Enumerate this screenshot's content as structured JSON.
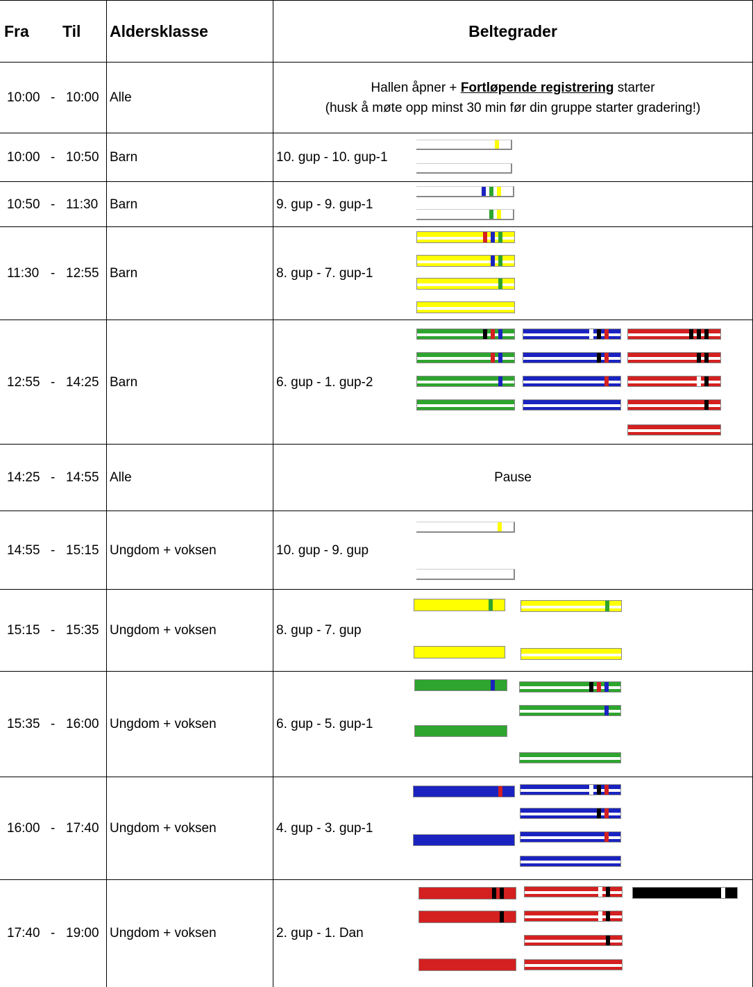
{
  "header": {
    "from": "Fra",
    "to": "Til",
    "age_class": "Aldersklasse",
    "belts": "Beltegrader"
  },
  "rows": [
    {
      "from": "10:00",
      "sep": "-",
      "to": "10:00",
      "age": "Alle",
      "grades": "",
      "note_pre": "Hallen åpner + ",
      "note_link": "Fortløpende registrering",
      "note_post": " starter",
      "note_line2": "(husk å møte opp minst 30 min før din gruppe starter gradering!)"
    },
    {
      "from": "10:00",
      "sep": "-",
      "to": "10:50",
      "age": "Barn",
      "grades": "10. gup - 10. gup-1"
    },
    {
      "from": "10:50",
      "sep": "-",
      "to": "11:30",
      "age": "Barn",
      "grades": "9. gup - 9. gup-1"
    },
    {
      "from": "11:30",
      "sep": "-",
      "to": "12:55",
      "age": "Barn",
      "grades": "8. gup - 7. gup-1"
    },
    {
      "from": "12:55",
      "sep": "-",
      "to": "14:25",
      "age": "Barn",
      "grades": "6. gup - 1. gup-2"
    },
    {
      "from": "14:25",
      "sep": "-",
      "to": "14:55",
      "age": "Alle",
      "grades": "",
      "note": "Pause"
    },
    {
      "from": "14:55",
      "sep": "-",
      "to": "15:15",
      "age": "Ungdom + voksen",
      "grades": "10. gup - 9. gup"
    },
    {
      "from": "15:15",
      "sep": "-",
      "to": "15:35",
      "age": "Ungdom + voksen",
      "grades": "8. gup - 7. gup"
    },
    {
      "from": "15:35",
      "sep": "-",
      "to": "16:00",
      "age": "Ungdom + voksen",
      "grades": "6. gup - 5. gup-1"
    },
    {
      "from": "16:00",
      "sep": "-",
      "to": "17:40",
      "age": "Ungdom + voksen",
      "grades": "4. gup - 3. gup-1"
    },
    {
      "from": "17:40",
      "sep": "-",
      "to": "19:00",
      "age": "Ungdom + voksen",
      "grades": "2. gup - 1. Dan"
    }
  ],
  "colors": {
    "white": "#ffffff",
    "yellow": "#ffff00",
    "green": "#2ea52e",
    "blue": "#1a23c0",
    "red": "#d42020",
    "black": "#000000",
    "outline": "#888888"
  },
  "belt_groups": [
    {
      "row": 1,
      "belts": [
        {
          "base": "white",
          "stripes": [
            "yellow"
          ]
        },
        {
          "base": "white",
          "stripes": []
        }
      ]
    },
    {
      "row": 2,
      "belts": [
        {
          "base": "white",
          "stripes": [
            "blue",
            "green",
            "yellow"
          ]
        },
        {
          "base": "white",
          "stripes": [
            "green",
            "yellow"
          ]
        }
      ]
    },
    {
      "row": 3,
      "belts": [
        {
          "base": "yellow",
          "stripe_line": "white",
          "stripes": [
            "red",
            "blue",
            "green"
          ]
        },
        {
          "base": "yellow",
          "stripe_line": "white",
          "stripes": [
            "blue",
            "green"
          ]
        },
        {
          "base": "yellow",
          "stripe_line": "white",
          "stripes": [
            "green"
          ]
        },
        {
          "base": "yellow",
          "stripe_line": "white",
          "stripes": []
        }
      ]
    },
    {
      "row": 4,
      "belts": [
        {
          "base": "green",
          "stripe_line": "white",
          "stripes": [
            "black",
            "red",
            "blue"
          ]
        },
        {
          "base": "green",
          "stripe_line": "white",
          "stripes": [
            "red",
            "blue"
          ]
        },
        {
          "base": "green",
          "stripe_line": "white",
          "stripes": [
            "blue"
          ]
        },
        {
          "base": "green",
          "stripe_line": "white",
          "stripes": []
        },
        {
          "base": "blue",
          "stripe_line": "white",
          "stripes": [
            "white",
            "black",
            "red"
          ]
        },
        {
          "base": "blue",
          "stripe_line": "white",
          "stripes": [
            "black",
            "red"
          ]
        },
        {
          "base": "blue",
          "stripe_line": "white",
          "stripes": [
            "red"
          ]
        },
        {
          "base": "blue",
          "stripe_line": "white",
          "stripes": []
        },
        {
          "base": "red",
          "stripe_line": "white",
          "stripes": [
            "black",
            "black",
            "black"
          ]
        },
        {
          "base": "red",
          "stripe_line": "white",
          "stripes": [
            "black",
            "black"
          ]
        },
        {
          "base": "red",
          "stripe_line": "white",
          "stripes": [
            "white",
            "black"
          ]
        },
        {
          "base": "red",
          "stripe_line": "white",
          "stripes": [
            "black"
          ]
        },
        {
          "base": "red",
          "stripe_line": "white",
          "stripes": []
        }
      ]
    },
    {
      "row": 6,
      "belts": [
        {
          "base": "white",
          "stripes": [
            "yellow"
          ]
        },
        {
          "base": "white",
          "stripes": []
        }
      ]
    },
    {
      "row": 7,
      "belts": [
        {
          "base": "yellow",
          "stripes": [
            "green"
          ]
        },
        {
          "base": "yellow",
          "stripes": []
        },
        {
          "base": "yellow",
          "stripe_line": "white",
          "stripes": [
            "green"
          ]
        },
        {
          "base": "yellow",
          "stripe_line": "white",
          "stripes": []
        }
      ]
    },
    {
      "row": 8,
      "belts": [
        {
          "base": "green",
          "stripes": [
            "blue"
          ]
        },
        {
          "base": "green",
          "stripes": []
        },
        {
          "base": "green",
          "stripe_line": "white",
          "stripes": [
            "black",
            "red",
            "blue"
          ]
        },
        {
          "base": "green",
          "stripe_line": "white",
          "stripes": [
            "blue"
          ]
        },
        {
          "base": "green",
          "stripe_line": "white",
          "stripes": []
        }
      ]
    },
    {
      "row": 9,
      "belts": [
        {
          "base": "blue",
          "stripes": [
            "red"
          ]
        },
        {
          "base": "blue",
          "stripes": []
        },
        {
          "base": "blue",
          "stripe_line": "white",
          "stripes": [
            "white",
            "black",
            "red"
          ]
        },
        {
          "base": "blue",
          "stripe_line": "white",
          "stripes": [
            "black",
            "red"
          ]
        },
        {
          "base": "blue",
          "stripe_line": "white",
          "stripes": [
            "red"
          ]
        },
        {
          "base": "blue",
          "stripe_line": "white",
          "stripes": []
        }
      ]
    },
    {
      "row": 10,
      "belts": [
        {
          "base": "red",
          "stripes": [
            "black",
            "black"
          ]
        },
        {
          "base": "red",
          "stripes": [
            "black"
          ]
        },
        {
          "base": "red",
          "stripes": []
        },
        {
          "base": "red",
          "stripe_line": "white",
          "stripes": [
            "white",
            "black"
          ]
        },
        {
          "base": "red",
          "stripe_line": "white",
          "stripes": [
            "white",
            "black"
          ]
        },
        {
          "base": "red",
          "stripe_line": "white",
          "stripes": [
            "black"
          ]
        },
        {
          "base": "red",
          "stripe_line": "white",
          "stripes": []
        },
        {
          "base": "black",
          "stripes": [
            "white"
          ]
        }
      ]
    }
  ]
}
